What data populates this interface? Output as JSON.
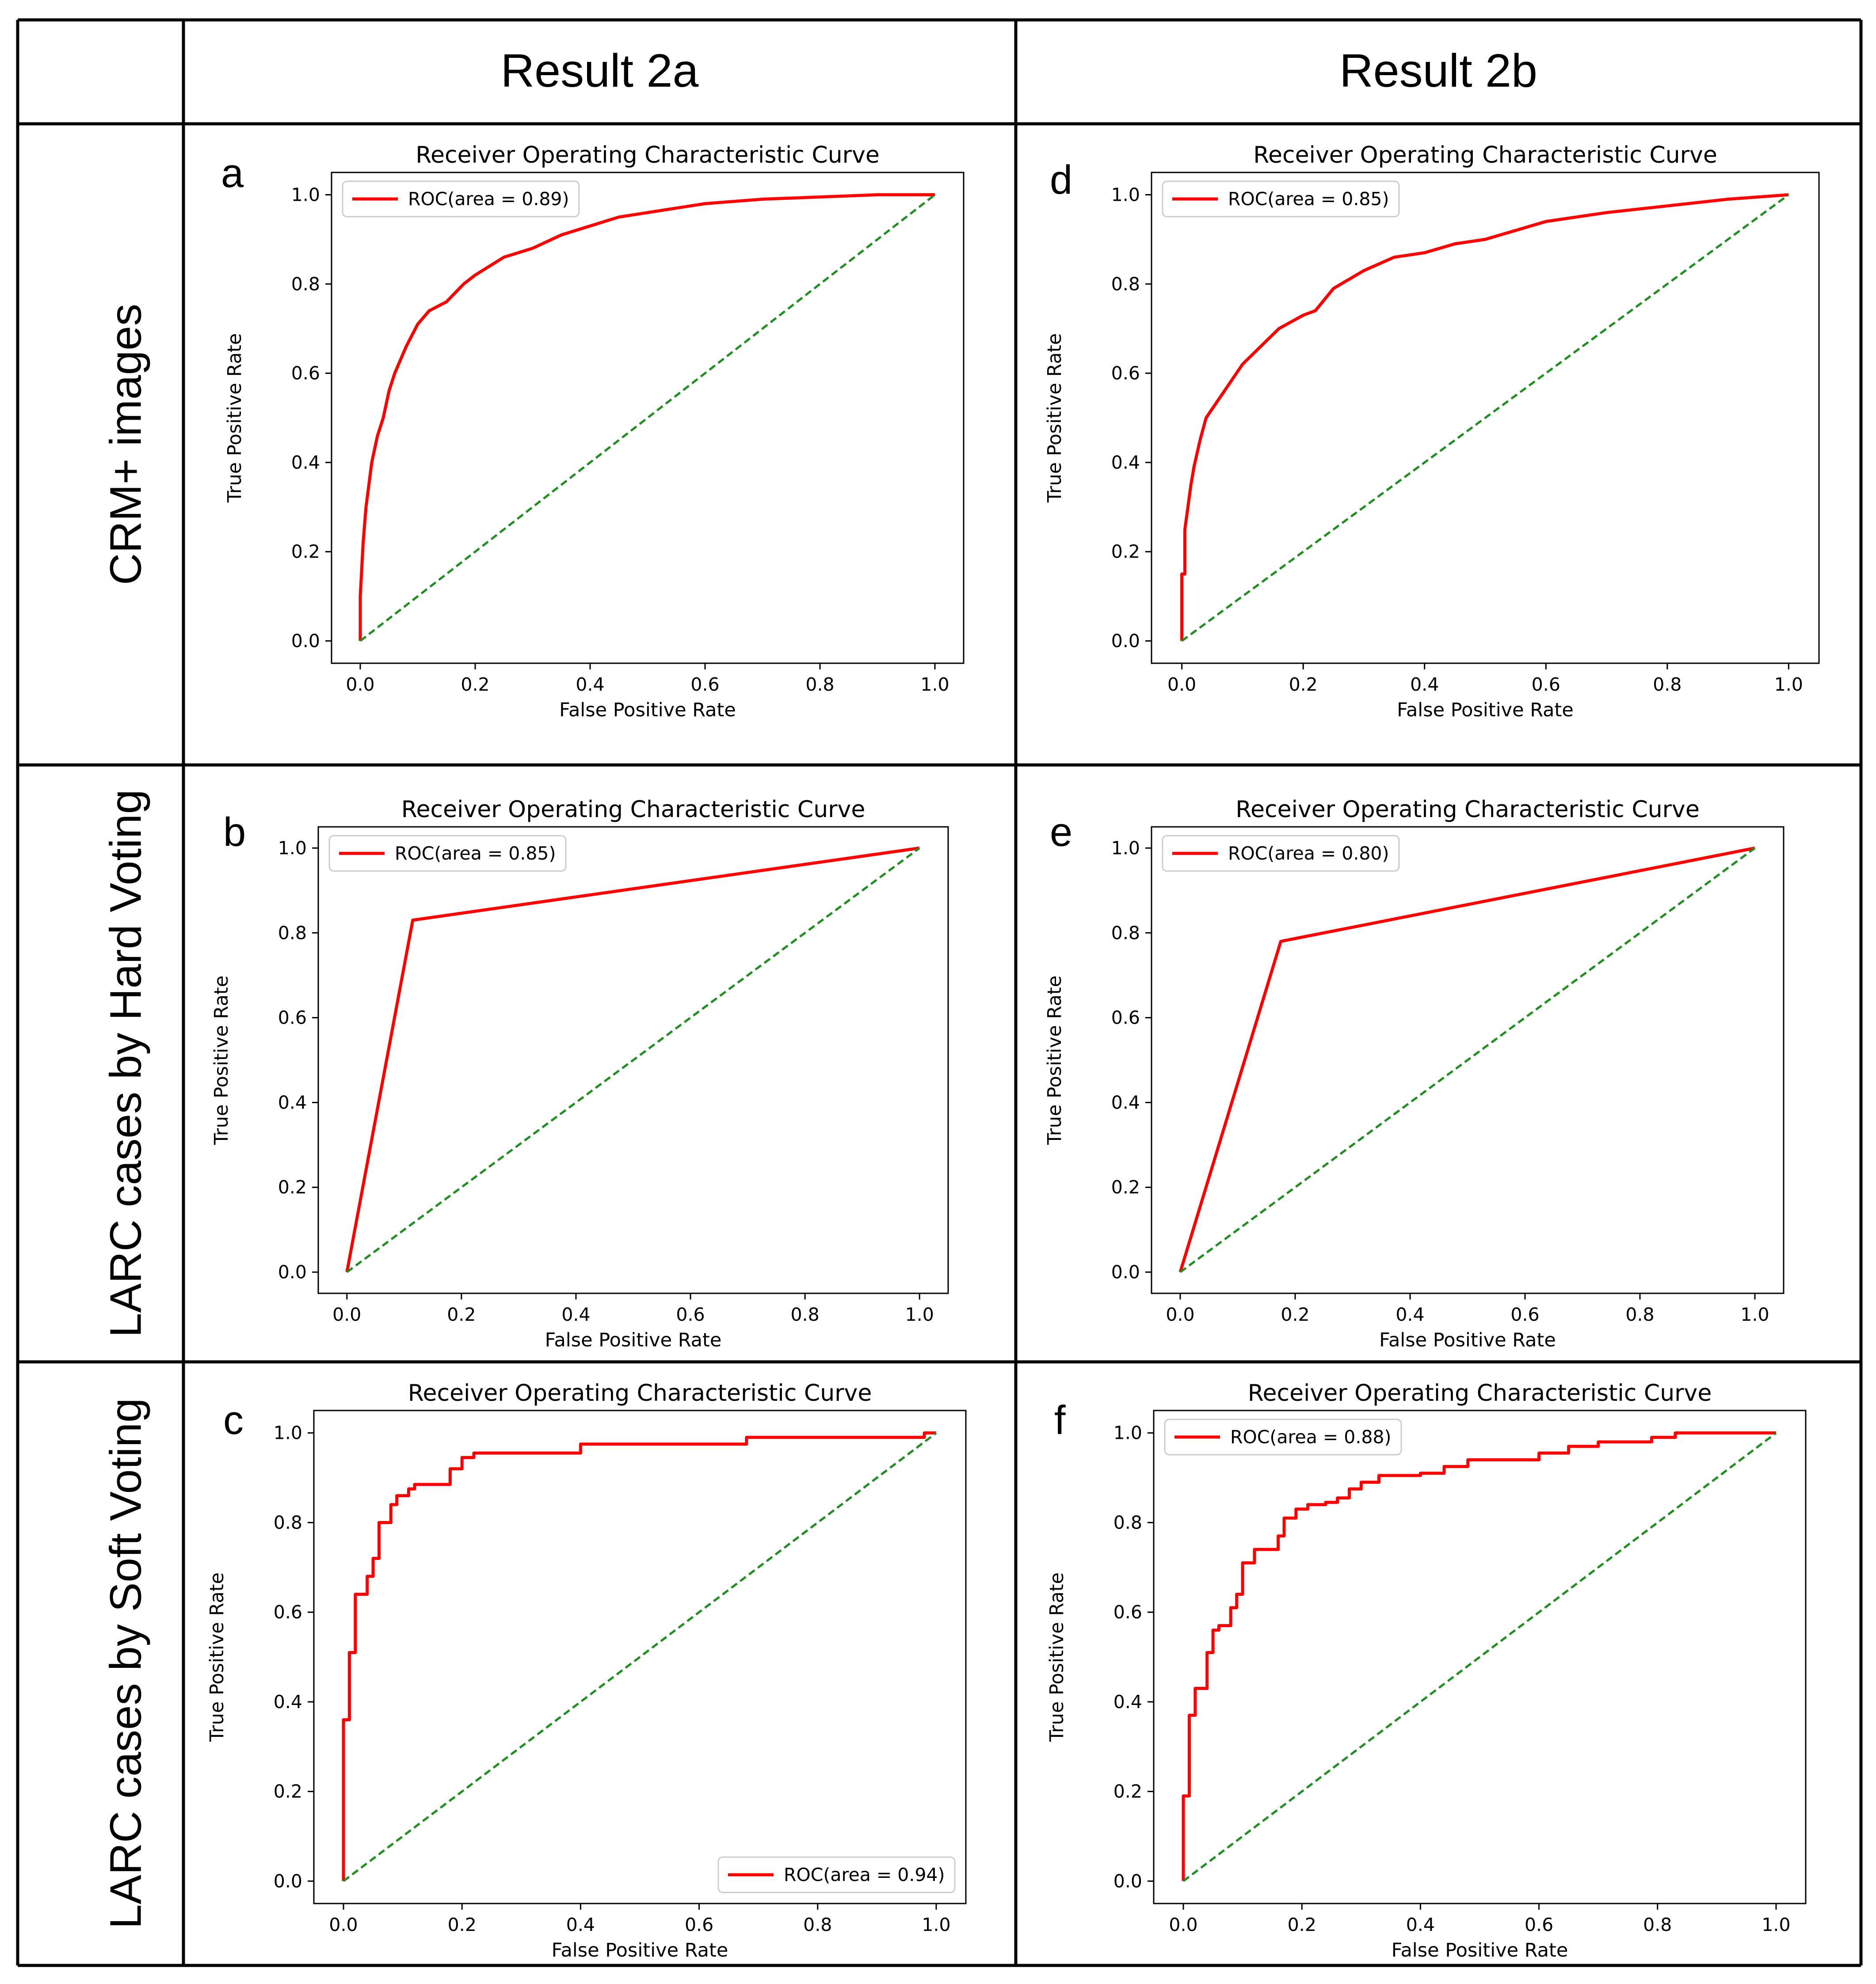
{
  "columns": [
    "Result 2a",
    "Result 2b"
  ],
  "rows": [
    "CRM+ images",
    "LARC cases by Hard Voting",
    "LARC cases by Soft Voting"
  ],
  "colors": {
    "roc": "#ff0000",
    "diagonal": "#1f8f1f",
    "frame": "#000000"
  },
  "chart_data": [
    {
      "panel": "a",
      "type": "line",
      "title": "Receiver Operating Characteristic Curve",
      "xlabel": "False Positive Rate",
      "ylabel": "True Positive Rate",
      "xlim": [
        -0.05,
        1.05
      ],
      "ylim": [
        -0.05,
        1.05
      ],
      "xticks": [
        "0.0",
        "0.2",
        "0.4",
        "0.6",
        "0.8",
        "1.0"
      ],
      "yticks": [
        "0.0",
        "0.2",
        "0.4",
        "0.6",
        "0.8",
        "1.0"
      ],
      "legend": "upper-left",
      "series": [
        {
          "name": "ROC(area = 0.89)",
          "style": "solid",
          "x": [
            0,
            0,
            0.005,
            0.01,
            0.015,
            0.02,
            0.03,
            0.04,
            0.05,
            0.06,
            0.08,
            0.1,
            0.12,
            0.15,
            0.18,
            0.2,
            0.25,
            0.3,
            0.35,
            0.4,
            0.45,
            0.5,
            0.6,
            0.7,
            0.8,
            0.9,
            1.0
          ],
          "y": [
            0,
            0.1,
            0.22,
            0.3,
            0.35,
            0.4,
            0.46,
            0.5,
            0.56,
            0.6,
            0.66,
            0.71,
            0.74,
            0.76,
            0.8,
            0.82,
            0.86,
            0.88,
            0.91,
            0.93,
            0.95,
            0.96,
            0.98,
            0.99,
            0.995,
            1.0,
            1.0
          ]
        },
        {
          "name": "",
          "style": "dashed",
          "x": [
            0,
            1
          ],
          "y": [
            0,
            1
          ]
        }
      ]
    },
    {
      "panel": "d",
      "type": "line",
      "title": "Receiver Operating Characteristic Curve",
      "xlabel": "False Positive Rate",
      "ylabel": "True Positive Rate",
      "xlim": [
        -0.05,
        1.05
      ],
      "ylim": [
        -0.05,
        1.05
      ],
      "xticks": [
        "0.0",
        "0.2",
        "0.4",
        "0.6",
        "0.8",
        "1.0"
      ],
      "yticks": [
        "0.0",
        "0.2",
        "0.4",
        "0.6",
        "0.8",
        "1.0"
      ],
      "legend": "upper-left",
      "series": [
        {
          "name": "ROC(area = 0.85)",
          "style": "solid",
          "x": [
            0,
            0,
            0.005,
            0.005,
            0.01,
            0.015,
            0.02,
            0.03,
            0.04,
            0.06,
            0.08,
            0.1,
            0.13,
            0.16,
            0.2,
            0.22,
            0.25,
            0.3,
            0.35,
            0.4,
            0.45,
            0.5,
            0.6,
            0.7,
            0.8,
            0.9,
            0.95,
            1.0
          ],
          "y": [
            0,
            0.15,
            0.15,
            0.25,
            0.3,
            0.35,
            0.39,
            0.45,
            0.5,
            0.54,
            0.58,
            0.62,
            0.66,
            0.7,
            0.73,
            0.74,
            0.79,
            0.83,
            0.86,
            0.87,
            0.89,
            0.9,
            0.94,
            0.96,
            0.975,
            0.99,
            0.995,
            1.0
          ]
        },
        {
          "name": "",
          "style": "dashed",
          "x": [
            0,
            1
          ],
          "y": [
            0,
            1
          ]
        }
      ]
    },
    {
      "panel": "b",
      "type": "line",
      "title": "Receiver Operating Characteristic Curve",
      "xlabel": "False Positive Rate",
      "ylabel": "True Positive Rate",
      "xlim": [
        -0.05,
        1.05
      ],
      "ylim": [
        -0.05,
        1.05
      ],
      "xticks": [
        "0.0",
        "0.2",
        "0.4",
        "0.6",
        "0.8",
        "1.0"
      ],
      "yticks": [
        "0.0",
        "0.2",
        "0.4",
        "0.6",
        "0.8",
        "1.0"
      ],
      "legend": "upper-left",
      "series": [
        {
          "name": "ROC(area = 0.85)",
          "style": "solid",
          "x": [
            0,
            0.115,
            1.0
          ],
          "y": [
            0,
            0.83,
            1.0
          ]
        },
        {
          "name": "",
          "style": "dashed",
          "x": [
            0,
            1
          ],
          "y": [
            0,
            1
          ]
        }
      ]
    },
    {
      "panel": "e",
      "type": "line",
      "title": "Receiver Operating Characteristic Curve",
      "xlabel": "False Positive Rate",
      "ylabel": "True Positive Rate",
      "xlim": [
        -0.05,
        1.05
      ],
      "ylim": [
        -0.05,
        1.05
      ],
      "xticks": [
        "0.0",
        "0.2",
        "0.4",
        "0.6",
        "0.8",
        "1.0"
      ],
      "yticks": [
        "0.0",
        "0.2",
        "0.4",
        "0.6",
        "0.8",
        "1.0"
      ],
      "legend": "upper-left",
      "series": [
        {
          "name": "ROC(area = 0.80)",
          "style": "solid",
          "x": [
            0,
            0.175,
            1.0
          ],
          "y": [
            0,
            0.78,
            1.0
          ]
        },
        {
          "name": "",
          "style": "dashed",
          "x": [
            0,
            1
          ],
          "y": [
            0,
            1
          ]
        }
      ]
    },
    {
      "panel": "c",
      "type": "line",
      "title": "Receiver Operating Characteristic Curve",
      "xlabel": "False Positive Rate",
      "ylabel": "True Positive Rate",
      "xlim": [
        -0.05,
        1.05
      ],
      "ylim": [
        -0.05,
        1.05
      ],
      "xticks": [
        "0.0",
        "0.2",
        "0.4",
        "0.6",
        "0.8",
        "1.0"
      ],
      "yticks": [
        "0.0",
        "0.2",
        "0.4",
        "0.6",
        "0.8",
        "1.0"
      ],
      "legend": "lower-right",
      "series": [
        {
          "name": "ROC(area = 0.94)",
          "style": "solid",
          "x": [
            0,
            0,
            0.01,
            0.01,
            0.02,
            0.02,
            0.04,
            0.04,
            0.05,
            0.05,
            0.06,
            0.06,
            0.08,
            0.08,
            0.09,
            0.09,
            0.11,
            0.11,
            0.12,
            0.12,
            0.18,
            0.18,
            0.2,
            0.2,
            0.22,
            0.22,
            0.4,
            0.4,
            0.68,
            0.68,
            0.98,
            0.98,
            1.0
          ],
          "y": [
            0,
            0.36,
            0.36,
            0.51,
            0.51,
            0.64,
            0.64,
            0.68,
            0.68,
            0.72,
            0.72,
            0.8,
            0.8,
            0.84,
            0.84,
            0.86,
            0.86,
            0.875,
            0.875,
            0.885,
            0.885,
            0.92,
            0.92,
            0.945,
            0.945,
            0.955,
            0.955,
            0.975,
            0.975,
            0.99,
            0.99,
            1.0,
            1.0
          ]
        },
        {
          "name": "",
          "style": "dashed",
          "x": [
            0,
            1
          ],
          "y": [
            0,
            1
          ]
        }
      ]
    },
    {
      "panel": "f",
      "type": "line",
      "title": "Receiver Operating Characteristic Curve",
      "xlabel": "False Positive Rate",
      "ylabel": "True Positive Rate",
      "xlim": [
        -0.05,
        1.05
      ],
      "ylim": [
        -0.05,
        1.05
      ],
      "xticks": [
        "0.0",
        "0.2",
        "0.4",
        "0.6",
        "0.8",
        "1.0"
      ],
      "yticks": [
        "0.0",
        "0.2",
        "0.4",
        "0.6",
        "0.8",
        "1.0"
      ],
      "legend": "upper-left",
      "series": [
        {
          "name": "ROC(area = 0.88)",
          "style": "solid",
          "x": [
            0,
            0,
            0.01,
            0.01,
            0.02,
            0.02,
            0.04,
            0.04,
            0.05,
            0.05,
            0.06,
            0.06,
            0.08,
            0.08,
            0.09,
            0.09,
            0.1,
            0.1,
            0.12,
            0.12,
            0.16,
            0.16,
            0.17,
            0.17,
            0.19,
            0.19,
            0.21,
            0.21,
            0.24,
            0.24,
            0.26,
            0.26,
            0.28,
            0.28,
            0.3,
            0.3,
            0.33,
            0.33,
            0.4,
            0.4,
            0.44,
            0.44,
            0.48,
            0.48,
            0.6,
            0.6,
            0.65,
            0.65,
            0.7,
            0.7,
            0.79,
            0.79,
            0.83,
            0.83,
            1.0
          ],
          "y": [
            0,
            0.19,
            0.19,
            0.37,
            0.37,
            0.43,
            0.43,
            0.51,
            0.51,
            0.56,
            0.56,
            0.57,
            0.57,
            0.61,
            0.61,
            0.64,
            0.64,
            0.71,
            0.71,
            0.74,
            0.74,
            0.77,
            0.77,
            0.81,
            0.81,
            0.83,
            0.83,
            0.84,
            0.84,
            0.845,
            0.845,
            0.855,
            0.855,
            0.875,
            0.875,
            0.89,
            0.89,
            0.905,
            0.905,
            0.91,
            0.91,
            0.925,
            0.925,
            0.94,
            0.94,
            0.955,
            0.955,
            0.97,
            0.97,
            0.98,
            0.98,
            0.99,
            0.99,
            1.0,
            1.0
          ]
        },
        {
          "name": "",
          "style": "dashed",
          "x": [
            0,
            1
          ],
          "y": [
            0,
            1
          ]
        }
      ]
    }
  ]
}
